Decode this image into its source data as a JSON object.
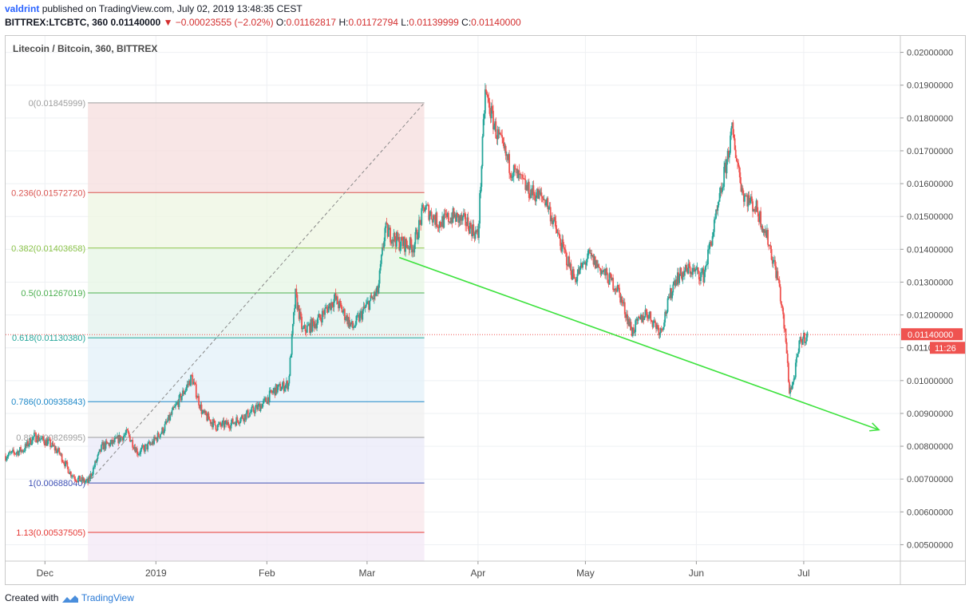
{
  "header": {
    "user": "valdrint",
    "published_text": "published on TradingView.com, July 02, 2019 13:48:35 CEST",
    "symbol": "BITTREX:LTCBTC, 360",
    "last": "0.01140000",
    "change": "−0.00023555 (−2.02%)",
    "open_label": "O:",
    "open": "0.01162817",
    "high_label": "H:",
    "high": "0.01172794",
    "low_label": "L:",
    "low": "0.01139999",
    "close_label": "C:",
    "close": "0.01140000"
  },
  "footer": {
    "created_with": "Created with",
    "brand": "TradingView"
  },
  "colors": {
    "up": "#26a69a",
    "down": "#ef5350",
    "trend": "#3ee23e",
    "price_line": "#ef5350"
  },
  "chart_data": {
    "type": "candlestick",
    "title": "Litecoin / Bitcoin, 360, BITTREX",
    "ylim": [
      0.0045,
      0.0205
    ],
    "y_ticks": [
      "0.02000000",
      "0.01900000",
      "0.01800000",
      "0.01700000",
      "0.01600000",
      "0.01500000",
      "0.01400000",
      "0.01300000",
      "0.01200000",
      "0.01100000",
      "0.01000000",
      "0.00900000",
      "0.00800000",
      "0.00700000",
      "0.00600000",
      "0.00500000"
    ],
    "x_range": [
      "2018-11-20",
      "2019-07-28"
    ],
    "x_ticks": [
      {
        "date": "2018-12-01",
        "label": "Dec"
      },
      {
        "date": "2019-01-01",
        "label": "2019"
      },
      {
        "date": "2019-02-01",
        "label": "Feb"
      },
      {
        "date": "2019-03-01",
        "label": "Mar"
      },
      {
        "date": "2019-04-01",
        "label": "Apr"
      },
      {
        "date": "2019-05-01",
        "label": "May"
      },
      {
        "date": "2019-06-01",
        "label": "Jun"
      },
      {
        "date": "2019-07-01",
        "label": "Jul"
      }
    ],
    "current_price": {
      "value": 0.0114,
      "label": "0.01140000",
      "countdown": "11:26",
      "hidden_tick": "0.011"
    },
    "fibonacci": {
      "start_date": "2018-12-13",
      "end_date": "2019-03-17",
      "levels": [
        {
          "label": "0(0.01845999)",
          "value": 0.01845999,
          "color": "#9e9e9e",
          "fill": "#f6dede"
        },
        {
          "label": "0.236(0.01572720)",
          "value": 0.0157272,
          "color": "#d9534f",
          "fill": "#eef6e2"
        },
        {
          "label": "0.382(0.01403658)",
          "value": 0.01403658,
          "color": "#8bc34a",
          "fill": "#e6f5e4"
        },
        {
          "label": "0.5(0.01267019)",
          "value": 0.01267019,
          "color": "#4caf50",
          "fill": "#e3f1ee"
        },
        {
          "label": "0.618(0.01130380)",
          "value": 0.0113038,
          "color": "#26a69a",
          "fill": "#e3f0f8"
        },
        {
          "label": "0.786(0.00935843)",
          "value": 0.00935843,
          "color": "#1e88c8",
          "fill": "#f0f0f0"
        },
        {
          "label": "0.88(0.00826995)",
          "value": 0.00826995,
          "color": "#9e9e9e",
          "fill": "#e9e9f8"
        },
        {
          "label": "1(0.00688040)",
          "value": 0.0068804,
          "color": "#3f51b5",
          "fill": "#f8e6ea"
        },
        {
          "label": "1.13(0.00537505)",
          "value": 0.00537505,
          "color": "#e53935",
          "fill": "#f3e8f5"
        }
      ]
    },
    "fib_diagonal": [
      [
        "2018-12-13",
        0.0068804
      ],
      [
        "2019-03-17",
        0.01845999
      ]
    ],
    "trendline": [
      [
        "2019-03-10",
        0.01375
      ],
      [
        "2019-07-22",
        0.0085
      ]
    ],
    "price_path": [
      [
        "2018-11-20",
        0.0077
      ],
      [
        "2018-11-25",
        0.0079
      ],
      [
        "2018-11-28",
        0.0083
      ],
      [
        "2018-12-02",
        0.0081
      ],
      [
        "2018-12-05",
        0.0078
      ],
      [
        "2018-12-08",
        0.0072
      ],
      [
        "2018-12-10",
        0.007
      ],
      [
        "2018-12-13",
        0.0069
      ],
      [
        "2018-12-17",
        0.008
      ],
      [
        "2018-12-20",
        0.0081
      ],
      [
        "2018-12-24",
        0.0084
      ],
      [
        "2018-12-27",
        0.0078
      ],
      [
        "2018-12-31",
        0.0081
      ],
      [
        "2019-01-03",
        0.0085
      ],
      [
        "2019-01-08",
        0.0095
      ],
      [
        "2019-01-11",
        0.0101
      ],
      [
        "2019-01-14",
        0.009
      ],
      [
        "2019-01-18",
        0.0086
      ],
      [
        "2019-01-22",
        0.0087
      ],
      [
        "2019-01-27",
        0.009
      ],
      [
        "2019-01-31",
        0.0093
      ],
      [
        "2019-02-03",
        0.0097
      ],
      [
        "2019-02-07",
        0.0099
      ],
      [
        "2019-02-09",
        0.0126
      ],
      [
        "2019-02-11",
        0.0115
      ],
      [
        "2019-02-15",
        0.0118
      ],
      [
        "2019-02-20",
        0.0125
      ],
      [
        "2019-02-25",
        0.0116
      ],
      [
        "2019-03-01",
        0.0123
      ],
      [
        "2019-03-04",
        0.0127
      ],
      [
        "2019-03-06",
        0.0146
      ],
      [
        "2019-03-10",
        0.0142
      ],
      [
        "2019-03-14",
        0.0141
      ],
      [
        "2019-03-17",
        0.0153
      ],
      [
        "2019-03-21",
        0.0148
      ],
      [
        "2019-03-25",
        0.015
      ],
      [
        "2019-03-29",
        0.0148
      ],
      [
        "2019-04-01",
        0.0144
      ],
      [
        "2019-04-03",
        0.0188
      ],
      [
        "2019-04-06",
        0.0176
      ],
      [
        "2019-04-10",
        0.0165
      ],
      [
        "2019-04-15",
        0.0158
      ],
      [
        "2019-04-20",
        0.0155
      ],
      [
        "2019-04-24",
        0.0142
      ],
      [
        "2019-04-28",
        0.0131
      ],
      [
        "2019-05-02",
        0.0138
      ],
      [
        "2019-05-06",
        0.0133
      ],
      [
        "2019-05-10",
        0.0128
      ],
      [
        "2019-05-14",
        0.0115
      ],
      [
        "2019-05-18",
        0.0121
      ],
      [
        "2019-05-22",
        0.0115
      ],
      [
        "2019-05-26",
        0.0131
      ],
      [
        "2019-05-30",
        0.0134
      ],
      [
        "2019-06-03",
        0.0132
      ],
      [
        "2019-06-07",
        0.0152
      ],
      [
        "2019-06-11",
        0.0176
      ],
      [
        "2019-06-14",
        0.0157
      ],
      [
        "2019-06-18",
        0.0152
      ],
      [
        "2019-06-21",
        0.0143
      ],
      [
        "2019-06-24",
        0.013
      ],
      [
        "2019-06-26",
        0.0112
      ],
      [
        "2019-06-27",
        0.0097
      ],
      [
        "2019-06-28",
        0.0099
      ],
      [
        "2019-06-30",
        0.0112
      ],
      [
        "2019-07-02",
        0.0114
      ]
    ]
  }
}
